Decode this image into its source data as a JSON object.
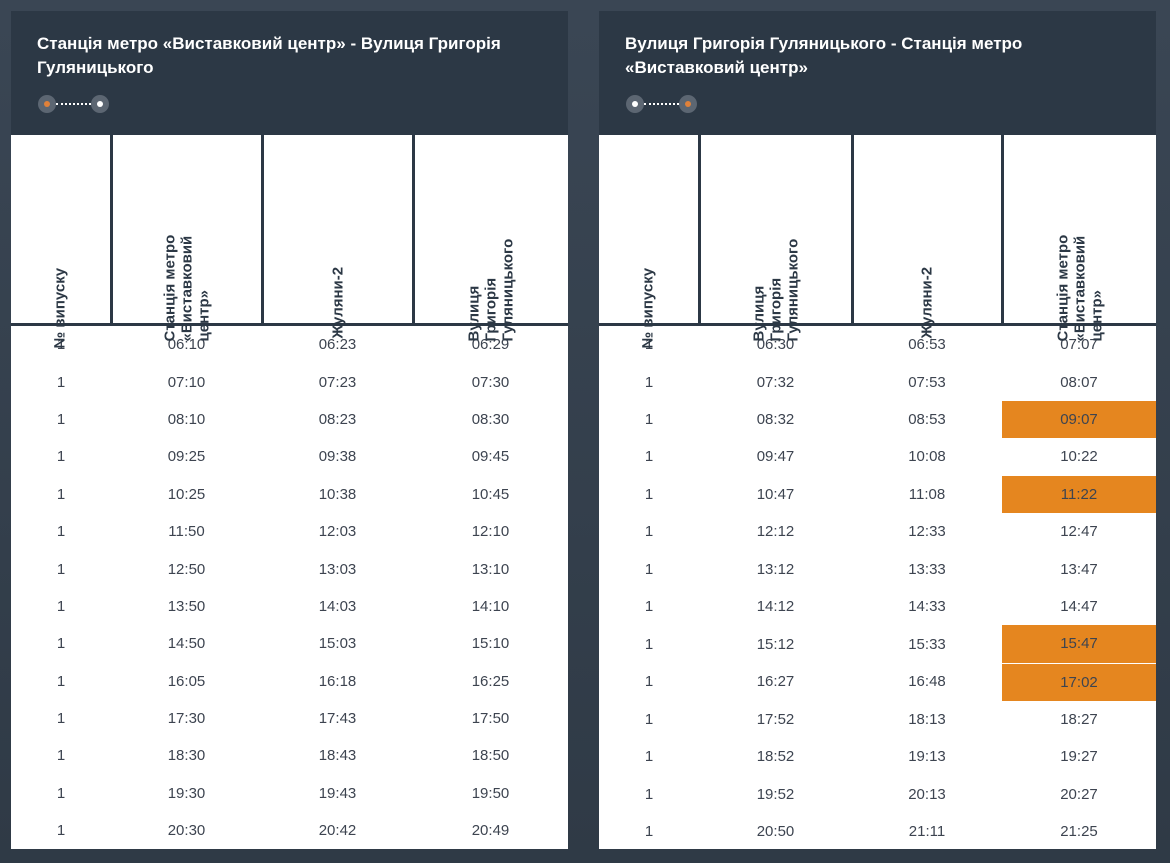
{
  "colors": {
    "header_bg": "#2c3845",
    "highlight": "#e5861f",
    "page_bg": "#3a4654"
  },
  "left": {
    "title": "Станція метро «Виставковий центр» - Вулиця Григорія Гуляницького",
    "columns": [
      "№ випуску",
      "Станція метро «Виставковий центр»",
      "Жуляни-2",
      "Вулиця Григорія Гуляницького"
    ],
    "rows": [
      [
        "1",
        "06:10",
        "06:23",
        "06:29"
      ],
      [
        "1",
        "07:10",
        "07:23",
        "07:30"
      ],
      [
        "1",
        "08:10",
        "08:23",
        "08:30"
      ],
      [
        "1",
        "09:25",
        "09:38",
        "09:45"
      ],
      [
        "1",
        "10:25",
        "10:38",
        "10:45"
      ],
      [
        "1",
        "11:50",
        "12:03",
        "12:10"
      ],
      [
        "1",
        "12:50",
        "13:03",
        "13:10"
      ],
      [
        "1",
        "13:50",
        "14:03",
        "14:10"
      ],
      [
        "1",
        "14:50",
        "15:03",
        "15:10"
      ],
      [
        "1",
        "16:05",
        "16:18",
        "16:25"
      ],
      [
        "1",
        "17:30",
        "17:43",
        "17:50"
      ],
      [
        "1",
        "18:30",
        "18:43",
        "18:50"
      ],
      [
        "1",
        "19:30",
        "19:43",
        "19:50"
      ],
      [
        "1",
        "20:30",
        "20:42",
        "20:49"
      ]
    ]
  },
  "right": {
    "title": "Вулиця Григорія Гуляницького - Станція метро «Виставковий центр»",
    "columns": [
      "№ випуску",
      "Вулиця Григорія Гуляницького",
      "Жуляни-2",
      "Станція метро «Виставковий центр»"
    ],
    "rows": [
      [
        "1",
        "06:30",
        "06:53",
        "07:07"
      ],
      [
        "1",
        "07:32",
        "07:53",
        "08:07"
      ],
      [
        "1",
        "08:32",
        "08:53",
        "09:07"
      ],
      [
        "1",
        "09:47",
        "10:08",
        "10:22"
      ],
      [
        "1",
        "10:47",
        "11:08",
        "11:22"
      ],
      [
        "1",
        "12:12",
        "12:33",
        "12:47"
      ],
      [
        "1",
        "13:12",
        "13:33",
        "13:47"
      ],
      [
        "1",
        "14:12",
        "14:33",
        "14:47"
      ],
      [
        "1",
        "15:12",
        "15:33",
        "15:47"
      ],
      [
        "1",
        "16:27",
        "16:48",
        "17:02"
      ],
      [
        "1",
        "17:52",
        "18:13",
        "18:27"
      ],
      [
        "1",
        "18:52",
        "19:13",
        "19:27"
      ],
      [
        "1",
        "19:52",
        "20:13",
        "20:27"
      ],
      [
        "1",
        "20:50",
        "21:11",
        "21:25"
      ]
    ],
    "highlighted_rows": [
      2,
      4,
      8,
      9
    ]
  }
}
